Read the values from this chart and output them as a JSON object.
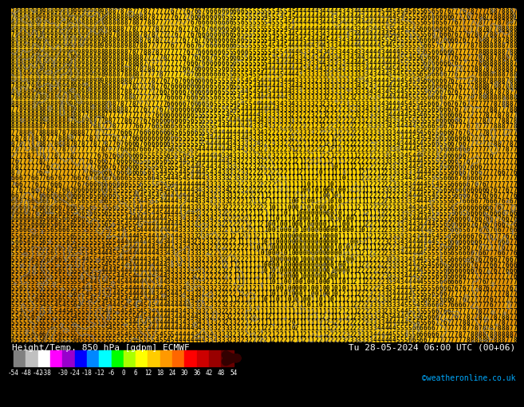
{
  "title_left": "Height/Temp. 850 hPa [gdpm] ECMWF",
  "title_right": "Tu 28-05-2024 06:00 UTC (00+06)",
  "credit": "©weatheronline.co.uk",
  "colorbar_ticks": [
    -54,
    -48,
    -42,
    -38,
    -30,
    -24,
    -18,
    -12,
    -6,
    0,
    6,
    12,
    18,
    24,
    30,
    36,
    42,
    48,
    54
  ],
  "colorbar_colors": [
    "#808080",
    "#c0c0c0",
    "#ffffff",
    "#ff00ff",
    "#9900cc",
    "#0000ff",
    "#0088ff",
    "#00ffff",
    "#00ff00",
    "#aaff00",
    "#ffff00",
    "#ffcc00",
    "#ff9900",
    "#ff6600",
    "#ff0000",
    "#cc0000",
    "#990000",
    "#660000",
    "#330000"
  ],
  "bg_color": "#f5c800",
  "font_size": 5.5,
  "num_rows": 58,
  "num_cols": 130
}
